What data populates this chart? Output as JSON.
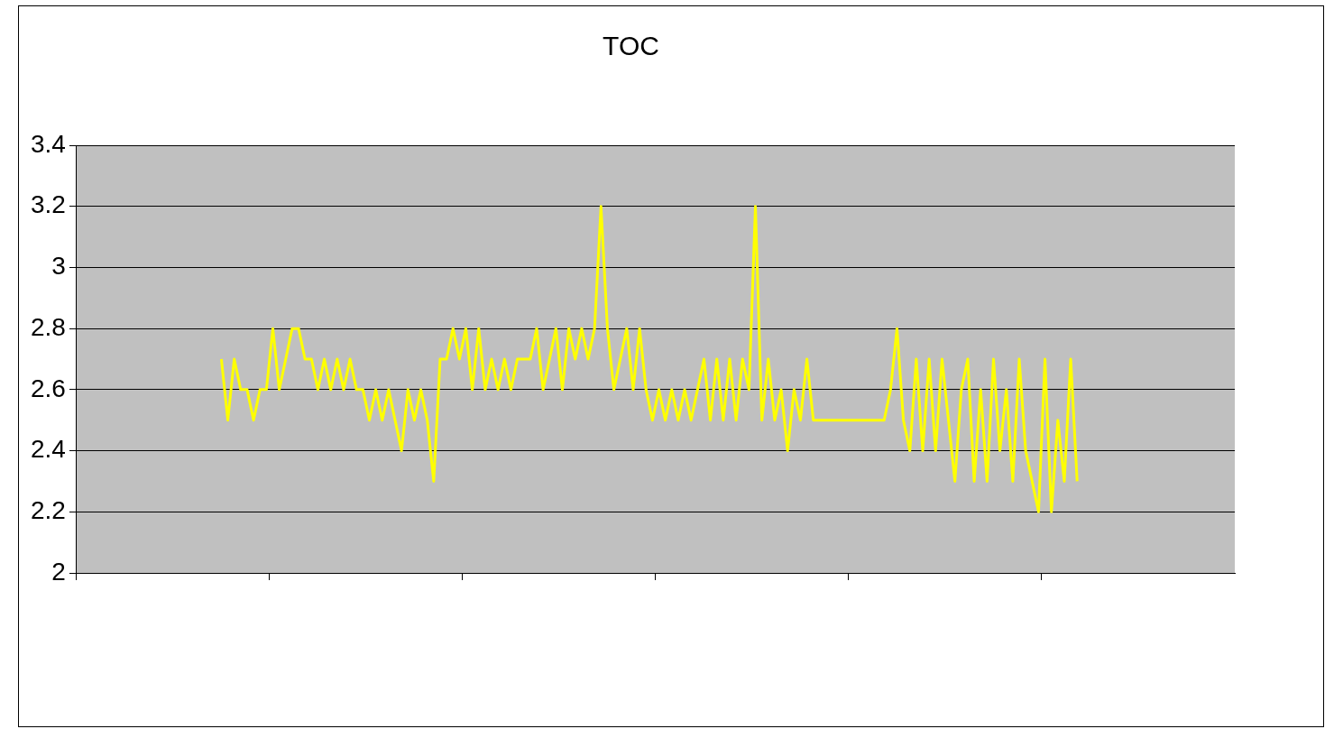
{
  "chart_data": {
    "type": "line",
    "title": "TOC",
    "categories": [
      null,
      null,
      null,
      null,
      null,
      null,
      null,
      null,
      null,
      null,
      null,
      null,
      null,
      null,
      null,
      null,
      null,
      null,
      null,
      null,
      null,
      null,
      null,
      null,
      null,
      null,
      null,
      null,
      null,
      null,
      null,
      null,
      null,
      null,
      null,
      null,
      null,
      null,
      null,
      null,
      null,
      null,
      null,
      null,
      null,
      null,
      null,
      null,
      null,
      null,
      null,
      null,
      null,
      null,
      null,
      null,
      null,
      null,
      null,
      null,
      null,
      null,
      null,
      null,
      null,
      null,
      null,
      null,
      null,
      null,
      null,
      null,
      null,
      null,
      null,
      null,
      null,
      null,
      null,
      null,
      null,
      null,
      null,
      null,
      null,
      null,
      null,
      null,
      null,
      null,
      null,
      null,
      null,
      null,
      null,
      null,
      null,
      null,
      null,
      null,
      null,
      null,
      null,
      null,
      null,
      null,
      null,
      null,
      null,
      null,
      null,
      null,
      null,
      null,
      null,
      null,
      null,
      null,
      null,
      null,
      null,
      null,
      null,
      null,
      null,
      null,
      null,
      null,
      null,
      null,
      null,
      null,
      null,
      null,
      null,
      null,
      null,
      null,
      null,
      null,
      null,
      null,
      null,
      null,
      null,
      null,
      null,
      null,
      null,
      null,
      null,
      null,
      null,
      null,
      null,
      null,
      null,
      null,
      null,
      null,
      null,
      null,
      null,
      null,
      null,
      null,
      null,
      null,
      null,
      null,
      null,
      null,
      null,
      null,
      null,
      null,
      null,
      null,
      null,
      null
    ],
    "series": [
      {
        "color": "#ffff00",
        "values": [
          null,
          null,
          null,
          null,
          null,
          null,
          null,
          null,
          null,
          null,
          null,
          null,
          null,
          null,
          null,
          null,
          null,
          null,
          null,
          null,
          null,
          null,
          2.7,
          2.5,
          2.7,
          2.6,
          2.6,
          2.5,
          2.6,
          2.6,
          2.8,
          2.6,
          2.7,
          2.8,
          2.8,
          2.7,
          2.7,
          2.6,
          2.7,
          2.6,
          2.7,
          2.6,
          2.7,
          2.6,
          2.6,
          2.5,
          2.6,
          2.5,
          2.6,
          2.5,
          2.4,
          2.6,
          2.5,
          2.6,
          2.5,
          2.3,
          2.7,
          2.7,
          2.8,
          2.7,
          2.8,
          2.6,
          2.8,
          2.6,
          2.7,
          2.6,
          2.7,
          2.6,
          2.7,
          2.7,
          2.7,
          2.8,
          2.6,
          2.7,
          2.8,
          2.6,
          2.8,
          2.7,
          2.8,
          2.7,
          2.8,
          3.2,
          2.8,
          2.6,
          2.7,
          2.8,
          2.6,
          2.8,
          2.6,
          2.5,
          2.6,
          2.5,
          2.6,
          2.5,
          2.6,
          2.5,
          2.6,
          2.7,
          2.5,
          2.7,
          2.5,
          2.7,
          2.5,
          2.7,
          2.6,
          3.2,
          2.5,
          2.7,
          2.5,
          2.6,
          2.4,
          2.6,
          2.5,
          2.7,
          2.5,
          2.5,
          2.5,
          2.5,
          2.5,
          2.5,
          2.5,
          2.5,
          2.5,
          2.5,
          2.5,
          2.5,
          2.6,
          2.8,
          2.5,
          2.4,
          2.7,
          2.4,
          2.7,
          2.4,
          2.7,
          2.5,
          2.3,
          2.6,
          2.7,
          2.3,
          2.6,
          2.3,
          2.7,
          2.4,
          2.6,
          2.3,
          2.7,
          2.4,
          2.3,
          2.2,
          2.7,
          2.2,
          2.5,
          2.3,
          2.7,
          2.3,
          null,
          null,
          null,
          null,
          null,
          null,
          null,
          null,
          null,
          null,
          null,
          null,
          null,
          null,
          null,
          null,
          null,
          null,
          null,
          null,
          null,
          null,
          null,
          null
        ]
      }
    ],
    "ylim": [
      2,
      3.4
    ],
    "yticks": [
      2,
      2.2,
      2.4,
      2.6,
      2.8,
      3,
      3.2,
      3.4
    ],
    "grid": "y",
    "marker": "none",
    "legend": false,
    "tick_labels": "y"
  }
}
